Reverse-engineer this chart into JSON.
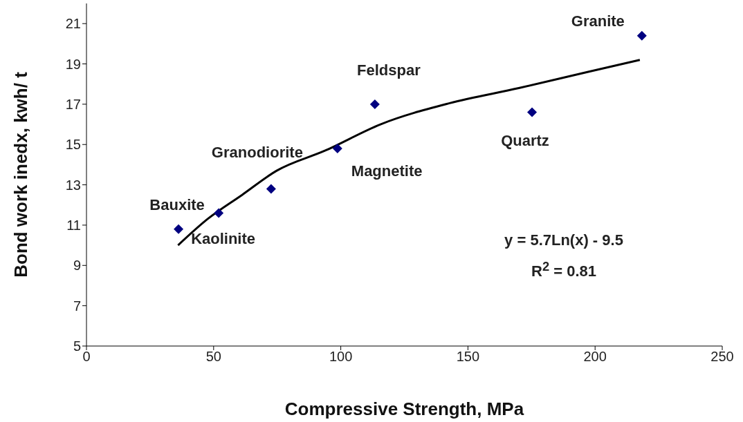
{
  "chart_data": {
    "type": "scatter",
    "xlabel": "Compressive Strength, MPa",
    "ylabel": "Bond work inedx, kwh/ t",
    "xlim": [
      0,
      250
    ],
    "xticks": [
      0,
      50,
      100,
      150,
      200,
      250
    ],
    "ylim": [
      5,
      22
    ],
    "yticks": [
      5,
      7,
      9,
      11,
      13,
      15,
      17,
      19,
      21
    ],
    "grid": false,
    "legend": false,
    "marker": "diamond",
    "series": [
      {
        "color": "#000080",
        "x": [
          36.2,
          52,
          72.6,
          98.7,
          113.4,
          175.2,
          218.4
        ],
        "values": [
          10.8,
          11.6,
          12.8,
          14.8,
          17.0,
          16.6,
          20.4
        ]
      },
      {
        "type": "line",
        "color": "#000000",
        "marker": "none",
        "x": [
          36,
          47.6,
          61.2,
          74.8,
          93.9,
          115.6,
          142.8,
          170,
          197,
          217.6
        ],
        "values": [
          10.0,
          11.3,
          12.5,
          13.7,
          14.7,
          16.0,
          17.05,
          17.8,
          18.6,
          19.2
        ]
      }
    ],
    "annotations": [
      {
        "text": "Bauxite",
        "x": 36.2,
        "y": 10.8
      },
      {
        "text": "Kaolinite",
        "x": 52,
        "y": 11.6
      },
      {
        "text": "Granodiorite",
        "x": 72.6,
        "y": 12.8
      },
      {
        "text": "Magnetite",
        "x": 98.7,
        "y": 14.8
      },
      {
        "text": "Feldspar",
        "x": 113.4,
        "y": 17.0
      },
      {
        "text": "Quartz",
        "x": 175.2,
        "y": 16.6
      },
      {
        "text": "Granite",
        "x": 218.4,
        "y": 20.4
      },
      "y = 5.7Ln(x) - 9.5",
      "R$^{2}$ = 0.81"
    ]
  }
}
